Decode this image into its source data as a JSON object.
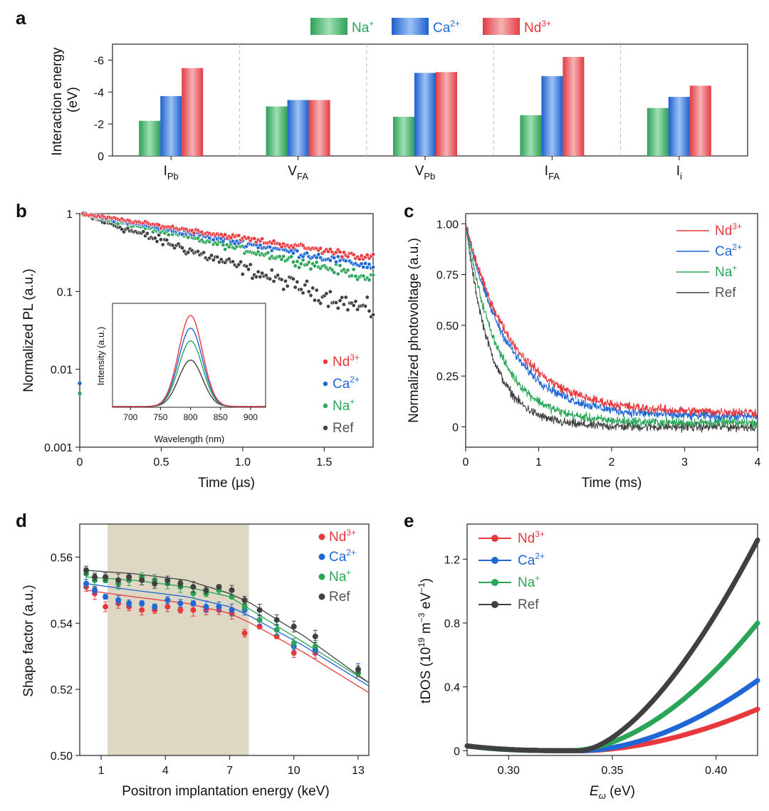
{
  "colors": {
    "Nd": "#e8383d",
    "Ca": "#1f66d6",
    "Na": "#2aa557",
    "Ref": "#404040",
    "shade": "#ddd7c3"
  },
  "legend_superscripts": {
    "Nd": "3+",
    "Ca": "2+",
    "Na": "+"
  },
  "chart_data": [
    {
      "panel": "a",
      "type": "bar",
      "ylabel": "Interaction energy (eV)",
      "ylim": [
        0,
        -7
      ],
      "yticks": [
        "0",
        "-2",
        "-4",
        "-6"
      ],
      "ytick_values": [
        0,
        -2,
        -4,
        -6
      ],
      "categories": [
        {
          "main": "I",
          "sub": "Pb"
        },
        {
          "main": "V",
          "sub": "FA"
        },
        {
          "main": "V",
          "sub": "Pb"
        },
        {
          "main": "I",
          "sub": "FA"
        },
        {
          "main": "I",
          "sub": "i"
        }
      ],
      "legend": [
        {
          "key": "Na",
          "label": "Na",
          "sup": "+"
        },
        {
          "key": "Ca",
          "label": "Ca",
          "sup": "2+"
        },
        {
          "key": "Nd",
          "label": "Nd",
          "sup": "3+"
        }
      ],
      "series": [
        {
          "name": "Na+",
          "key": "Na",
          "values": [
            -2.2,
            -3.1,
            -2.45,
            -2.55,
            -3.0
          ]
        },
        {
          "name": "Ca2+",
          "key": "Ca",
          "values": [
            -3.75,
            -3.5,
            -5.2,
            -5.0,
            -3.7
          ]
        },
        {
          "name": "Nd3+",
          "key": "Nd",
          "values": [
            -5.5,
            -3.5,
            -5.25,
            -6.2,
            -4.4
          ]
        }
      ]
    },
    {
      "panel": "b",
      "type": "scatter",
      "xlabel": "Time (µs)",
      "ylabel": "Normalized PL (a.u.)",
      "xlim": [
        0,
        1.8
      ],
      "ylim_log10": [
        -3,
        0
      ],
      "xticks": [
        "0",
        "0.5",
        "1.0",
        "1.5"
      ],
      "xtick_values": [
        0,
        0.5,
        1.0,
        1.5
      ],
      "yticks": [
        "0.001",
        "0.01",
        "0.1",
        "1"
      ],
      "ytick_values": [
        -3,
        -2,
        -1,
        0
      ],
      "legend": [
        {
          "key": "Nd",
          "label": "Nd",
          "sup": "3+"
        },
        {
          "key": "Ca",
          "label": "Ca",
          "sup": "2+"
        },
        {
          "key": "Na",
          "label": "Na",
          "sup": "+"
        },
        {
          "key": "Ref",
          "label": "Ref",
          "sup": ""
        }
      ],
      "series": [
        {
          "name": "Nd3+",
          "key": "Nd",
          "y_at_start": 1.0,
          "y_at_end": 0.27,
          "spread": 0.05
        },
        {
          "name": "Ca2+",
          "key": "Ca",
          "y_at_start": 1.0,
          "y_at_end": 0.21,
          "spread": 0.06
        },
        {
          "name": "Na+",
          "key": "Na",
          "y_at_start": 1.0,
          "y_at_end": 0.15,
          "spread": 0.07
        },
        {
          "name": "Ref",
          "key": "Ref",
          "y_at_start": 1.0,
          "y_at_end": 0.055,
          "spread": 0.13
        }
      ],
      "inset": {
        "xlabel": "Wavelength (nm)",
        "ylabel": "Intensity (a.u.)",
        "xlim": [
          670,
          925
        ],
        "xticks": [
          "700",
          "750",
          "800",
          "850",
          "900"
        ],
        "xtick_values": [
          700,
          750,
          800,
          850,
          900
        ],
        "peak_wavelength": 800,
        "peak_heights": {
          "Nd": 1.0,
          "Ca": 0.86,
          "Na": 0.72,
          "Ref": 0.51
        }
      }
    },
    {
      "panel": "c",
      "type": "line",
      "xlabel": "Time (ms)",
      "ylabel": "Normalized photovoltage (a.u.)",
      "xlim": [
        0,
        4
      ],
      "ylim": [
        -0.1,
        1.05
      ],
      "xticks": [
        "0",
        "1",
        "2",
        "3",
        "4"
      ],
      "xtick_values": [
        0,
        1,
        2,
        3,
        4
      ],
      "yticks": [
        "0",
        "0.25",
        "0.50",
        "0.75",
        "1.00"
      ],
      "ytick_values": [
        0,
        0.25,
        0.5,
        0.75,
        1.0
      ],
      "legend": [
        {
          "key": "Nd",
          "label": "Nd",
          "sup": "3+"
        },
        {
          "key": "Ca",
          "label": "Ca",
          "sup": "2+"
        },
        {
          "key": "Na",
          "label": "Na",
          "sup": "+"
        },
        {
          "key": "Ref",
          "label": "Ref",
          "sup": ""
        }
      ],
      "series": [
        {
          "name": "Ref",
          "key": "Ref",
          "tau_ms": 0.35,
          "plateau": 0.0
        },
        {
          "name": "Na+",
          "key": "Na",
          "tau_ms": 0.45,
          "plateau": 0.02
        },
        {
          "name": "Ca2+",
          "key": "Ca",
          "tau_ms": 0.6,
          "plateau": 0.05
        },
        {
          "name": "Nd3+",
          "key": "Nd",
          "tau_ms": 0.65,
          "plateau": 0.07
        }
      ]
    },
    {
      "panel": "d",
      "type": "scatter",
      "xlabel": "Positron implantation energy (keV)",
      "ylabel": "Shape factor (a.u.)",
      "xlim": [
        0,
        13.5
      ],
      "ylim": [
        0.5,
        0.57
      ],
      "xticks": [
        "1",
        "4",
        "7",
        "10",
        "13"
      ],
      "xtick_values": [
        1,
        4,
        7,
        10,
        13
      ],
      "yticks": [
        "0.50",
        "0.52",
        "0.54",
        "0.56"
      ],
      "ytick_values": [
        0.5,
        0.52,
        0.54,
        0.56
      ],
      "shaded_range_keV": [
        1.3,
        7.9
      ],
      "x_points": [
        0.3,
        0.7,
        1.2,
        1.8,
        2.3,
        2.9,
        3.5,
        4.1,
        4.7,
        5.3,
        5.9,
        6.5,
        7.1,
        7.7,
        8.4,
        9.2,
        10.0,
        11.0,
        13.0
      ],
      "legend": [
        {
          "key": "Nd",
          "label": "Nd",
          "sup": "3+"
        },
        {
          "key": "Ca",
          "label": "Ca",
          "sup": "2+"
        },
        {
          "key": "Na",
          "label": "Na",
          "sup": "+"
        },
        {
          "key": "Ref",
          "label": "Ref",
          "sup": ""
        }
      ],
      "series": [
        {
          "name": "Nd3+",
          "key": "Nd",
          "values": [
            0.551,
            0.549,
            0.545,
            0.546,
            0.545,
            0.544,
            0.544,
            0.545,
            0.544,
            0.544,
            0.544,
            0.544,
            0.543,
            0.537,
            0.539,
            0.536,
            0.531,
            0.531,
            0.525
          ]
        },
        {
          "name": "Ca2+",
          "key": "Ca",
          "values": [
            0.552,
            0.55,
            0.548,
            0.547,
            0.546,
            0.546,
            0.545,
            0.547,
            0.546,
            0.546,
            0.545,
            0.545,
            0.544,
            0.544,
            0.541,
            0.538,
            0.533,
            0.532,
            0.526
          ]
        },
        {
          "name": "Na+",
          "key": "Na",
          "values": [
            0.555,
            0.553,
            0.553,
            0.552,
            0.553,
            0.554,
            0.553,
            0.552,
            0.551,
            0.549,
            0.549,
            0.55,
            0.548,
            0.545,
            0.541,
            0.538,
            0.534,
            0.533,
            0.525
          ]
        },
        {
          "name": "Ref",
          "key": "Ref",
          "values": [
            0.556,
            0.554,
            0.554,
            0.553,
            0.554,
            0.553,
            0.552,
            0.553,
            0.552,
            0.551,
            0.55,
            0.551,
            0.55,
            0.547,
            0.544,
            0.541,
            0.539,
            0.536,
            0.526
          ]
        }
      ],
      "fit_curves": {
        "Nd": [
          0.55,
          0.548,
          0.546,
          0.543,
          0.54,
          0.531,
          0.519
        ],
        "Ca": [
          0.552,
          0.55,
          0.548,
          0.545,
          0.542,
          0.533,
          0.521
        ],
        "Na": [
          0.554,
          0.553,
          0.551,
          0.548,
          0.544,
          0.534,
          0.522
        ],
        "Ref": [
          0.556,
          0.555,
          0.553,
          0.549,
          0.546,
          0.536,
          0.522
        ],
        "x": [
          0.3,
          2.5,
          5.0,
          7.0,
          8.0,
          10.5,
          13.5
        ]
      }
    },
    {
      "panel": "e",
      "type": "line",
      "xlabel": "E_ω (eV)",
      "ylabel": "tDOS (10^19 m^-3 eV^-1)",
      "xlim": [
        0.28,
        0.42
      ],
      "ylim": [
        -0.03,
        1.42
      ],
      "xticks": [
        "0.30",
        "0.35",
        "0.40"
      ],
      "xtick_values": [
        0.3,
        0.35,
        0.4
      ],
      "yticks": [
        "0",
        "0.4",
        "0.8",
        "1.2"
      ],
      "ytick_values": [
        0,
        0.4,
        0.8,
        1.2
      ],
      "legend": [
        {
          "key": "Nd",
          "label": "Nd",
          "sup": "3+"
        },
        {
          "key": "Ca",
          "label": "Ca",
          "sup": "2+"
        },
        {
          "key": "Na",
          "label": "Na",
          "sup": "+"
        },
        {
          "key": "Ref",
          "label": "Ref",
          "sup": ""
        }
      ],
      "series": [
        {
          "name": "Nd3+",
          "key": "Nd",
          "end_value": 0.26,
          "onset": 0.335
        },
        {
          "name": "Ca2+",
          "key": "Ca",
          "end_value": 0.44,
          "onset": 0.335
        },
        {
          "name": "Na+",
          "key": "Na",
          "end_value": 0.8,
          "onset": 0.33
        },
        {
          "name": "Ref",
          "key": "Ref",
          "end_value": 1.32,
          "onset": 0.335
        }
      ]
    }
  ],
  "panel_labels": [
    "a",
    "b",
    "c",
    "d",
    "e"
  ]
}
